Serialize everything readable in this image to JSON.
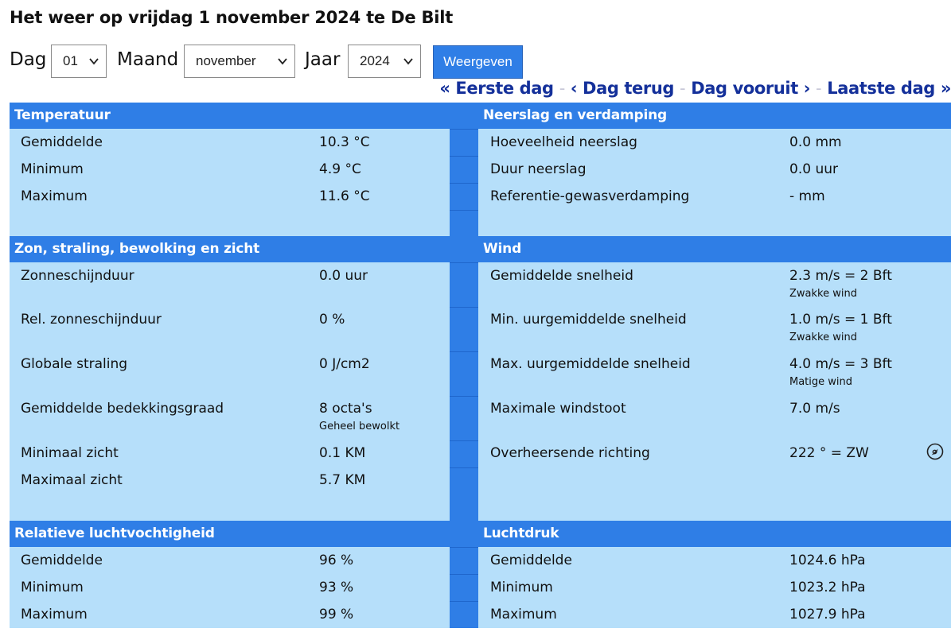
{
  "page": {
    "title": "Het weer op vrijdag 1 november 2024 te De Bilt"
  },
  "form": {
    "dag_label": "Dag",
    "dag_value": "01",
    "maand_label": "Maand",
    "maand_value": "november",
    "jaar_label": "Jaar",
    "jaar_value": "2024",
    "submit_label": "Weergeven"
  },
  "nav": {
    "first": "« Eerste dag",
    "prev": "‹ Dag terug",
    "next": "Dag vooruit ›",
    "last": "Laatste dag »",
    "sep": "-"
  },
  "sections": {
    "temperatuur": {
      "title": "Temperatuur",
      "rows": [
        {
          "name": "Gemiddelde",
          "value": "10.3 °C"
        },
        {
          "name": "Minimum",
          "value": "4.9 °C"
        },
        {
          "name": "Maximum",
          "value": "11.6 °C"
        }
      ]
    },
    "neerslag": {
      "title": "Neerslag en verdamping",
      "rows": [
        {
          "name": "Hoeveelheid neerslag",
          "value": "0.0 mm"
        },
        {
          "name": "Duur neerslag",
          "value": "0.0 uur"
        },
        {
          "name": "Referentie-gewasverdamping",
          "value": "- mm"
        }
      ]
    },
    "zon": {
      "title": "Zon, straling, bewolking en zicht",
      "rows": [
        {
          "name": "Zonneschijnduur",
          "value": "0.0 uur",
          "sub": ""
        },
        {
          "name": "Rel. zonneschijnduur",
          "value": "0 %",
          "sub": ""
        },
        {
          "name": "Globale straling",
          "value": "0 J/cm2",
          "sub": ""
        },
        {
          "name": "Gemiddelde bedekkingsgraad",
          "value": "8 octa's",
          "sub": "Geheel bewolkt"
        },
        {
          "name": "Minimaal zicht",
          "value": "0.1 KM",
          "sub": ""
        },
        {
          "name": "Maximaal zicht",
          "value": "5.7 KM",
          "sub": ""
        }
      ]
    },
    "wind": {
      "title": "Wind",
      "rows": [
        {
          "name": "Gemiddelde snelheid",
          "value": "2.3 m/s = 2 Bft",
          "sub": "Zwakke wind"
        },
        {
          "name": "Min. uurgemiddelde snelheid",
          "value": "1.0 m/s = 1 Bft",
          "sub": "Zwakke wind"
        },
        {
          "name": "Max. uurgemiddelde snelheid",
          "value": "4.0 m/s = 3 Bft",
          "sub": "Matige wind"
        },
        {
          "name": "Maximale windstoot",
          "value": "7.0 m/s",
          "sub": ""
        },
        {
          "name": "Overheersende richting",
          "value": "222 ° = ZW",
          "sub": ""
        }
      ],
      "direction_icon": "compass-icon"
    },
    "vocht": {
      "title": "Relatieve luchtvochtigheid",
      "rows": [
        {
          "name": "Gemiddelde",
          "value": "96 %"
        },
        {
          "name": "Minimum",
          "value": "93 %"
        },
        {
          "name": "Maximum",
          "value": "99 %"
        }
      ]
    },
    "druk": {
      "title": "Luchtdruk",
      "rows": [
        {
          "name": "Gemiddelde",
          "value": "1024.6 hPa"
        },
        {
          "name": "Minimum",
          "value": "1023.2 hPa"
        },
        {
          "name": "Maximum",
          "value": "1027.9 hPa"
        }
      ]
    }
  },
  "colors": {
    "header_blue": "#2f7ee6",
    "body_lightblue": "#b6dffa",
    "nav_link": "#14309a"
  }
}
